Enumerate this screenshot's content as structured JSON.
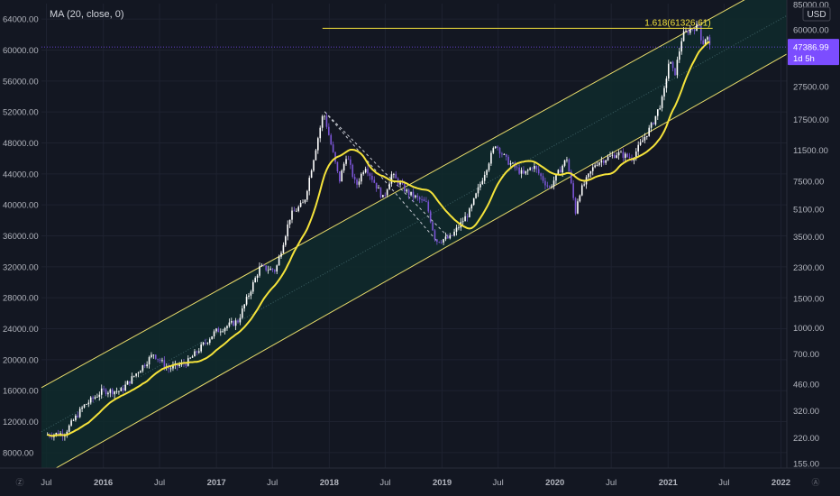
{
  "chart_data": {
    "type": "candlestick",
    "indicator_label": "MA (20, close, 0)",
    "currency_label": "USD",
    "left_axis": {
      "scale": "linear",
      "range": [
        6000,
        66000
      ],
      "ticks": [
        "8000.00",
        "12000.00",
        "16000.00",
        "20000.00",
        "24000.00",
        "28000.00",
        "32000.00",
        "36000.00",
        "40000.00",
        "44000.00",
        "48000.00",
        "52000.00",
        "56000.00",
        "60000.00",
        "64000.00"
      ],
      "tick_values": [
        8000,
        12000,
        16000,
        20000,
        24000,
        28000,
        32000,
        36000,
        40000,
        44000,
        48000,
        52000,
        56000,
        60000,
        64000
      ]
    },
    "right_axis": {
      "scale": "log",
      "ticks": [
        "85000.00",
        "60000.00",
        "27500.00",
        "17500.00",
        "11500.00",
        "7500.00",
        "5100.00",
        "3500.00",
        "2300.00",
        "1500.00",
        "1000.00",
        "700.00",
        "460.00",
        "320.00",
        "220.00",
        "155.00"
      ],
      "tick_values": [
        85000,
        60000,
        27500,
        17500,
        11500,
        7500,
        5100,
        3500,
        2300,
        1500,
        1000,
        700,
        460,
        320,
        220,
        155
      ]
    },
    "x_axis": {
      "range": [
        "2015-06-15",
        "2022-01-20"
      ],
      "ticks": [
        {
          "label": "Jul",
          "date": "2015-07-01",
          "bold": false
        },
        {
          "label": "2016",
          "date": "2016-01-01",
          "bold": true
        },
        {
          "label": "Jul",
          "date": "2016-07-01",
          "bold": false
        },
        {
          "label": "2017",
          "date": "2017-01-01",
          "bold": true
        },
        {
          "label": "Jul",
          "date": "2017-07-01",
          "bold": false
        },
        {
          "label": "2018",
          "date": "2018-01-01",
          "bold": true
        },
        {
          "label": "Jul",
          "date": "2018-07-01",
          "bold": false
        },
        {
          "label": "2019",
          "date": "2019-01-01",
          "bold": true
        },
        {
          "label": "Jul",
          "date": "2019-07-01",
          "bold": false
        },
        {
          "label": "2020",
          "date": "2020-01-01",
          "bold": true
        },
        {
          "label": "Jul",
          "date": "2020-07-01",
          "bold": false
        },
        {
          "label": "2021",
          "date": "2021-01-01",
          "bold": true
        },
        {
          "label": "Jul",
          "date": "2021-07-01",
          "bold": false
        },
        {
          "label": "2022",
          "date": "2022-01-01",
          "bold": true
        }
      ]
    },
    "price_key_points": [
      [
        "2015-07-01",
        230
      ],
      [
        "2015-09-01",
        235
      ],
      [
        "2015-11-01",
        340
      ],
      [
        "2016-01-01",
        420
      ],
      [
        "2016-03-01",
        420
      ],
      [
        "2016-06-15",
        700
      ],
      [
        "2016-08-01",
        570
      ],
      [
        "2016-10-01",
        620
      ],
      [
        "2017-01-01",
        950
      ],
      [
        "2017-03-15",
        1100
      ],
      [
        "2017-05-25",
        2300
      ],
      [
        "2017-07-15",
        2200
      ],
      [
        "2017-09-01",
        4700
      ],
      [
        "2017-10-15",
        5600
      ],
      [
        "2017-12-17",
        19500
      ],
      [
        "2018-02-06",
        7500
      ],
      [
        "2018-03-01",
        10800
      ],
      [
        "2018-04-01",
        7000
      ],
      [
        "2018-05-01",
        9300
      ],
      [
        "2018-06-28",
        5900
      ],
      [
        "2018-07-25",
        8200
      ],
      [
        "2018-09-15",
        6400
      ],
      [
        "2018-11-15",
        5500
      ],
      [
        "2018-12-15",
        3300
      ],
      [
        "2019-02-01",
        3450
      ],
      [
        "2019-04-05",
        5000
      ],
      [
        "2019-06-26",
        12500
      ],
      [
        "2019-08-01",
        10000
      ],
      [
        "2019-09-25",
        8200
      ],
      [
        "2019-10-26",
        9300
      ],
      [
        "2019-12-17",
        6800
      ],
      [
        "2020-02-12",
        10300
      ],
      [
        "2020-03-12",
        4800
      ],
      [
        "2020-03-20",
        6200
      ],
      [
        "2020-05-15",
        9600
      ],
      [
        "2020-07-25",
        11000
      ],
      [
        "2020-09-10",
        10300
      ],
      [
        "2020-11-15",
        16500
      ],
      [
        "2020-12-20",
        24000
      ],
      [
        "2021-01-08",
        40000
      ],
      [
        "2021-01-25",
        32000
      ],
      [
        "2021-02-20",
        56000
      ],
      [
        "2021-03-13",
        60000
      ],
      [
        "2021-04-14",
        63500
      ],
      [
        "2021-04-25",
        49000
      ],
      [
        "2021-05-10",
        56000
      ],
      [
        "2021-05-17",
        47400
      ]
    ],
    "series": [
      {
        "name": "MA (20, close, 0)",
        "type": "line",
        "color": "#f5e33b"
      }
    ],
    "fibonacci_level": {
      "label": "1.618(61326.61)",
      "value": 61326.61,
      "from": "2017-12-10",
      "to": "2021-05-25"
    },
    "channel": {
      "upper": [
        [
          "2015-06-15",
          440
        ],
        [
          "2022-01-20",
          125000
        ]
      ],
      "lower": [
        [
          "2015-06-15",
          130
        ],
        [
          "2022-01-20",
          43000
        ]
      ],
      "mid": [
        [
          "2015-06-15",
          240
        ],
        [
          "2022-01-20",
          73000
        ]
      ]
    },
    "dashed_lines": [
      [
        [
          "2017-12-17",
          19500
        ],
        [
          "2018-12-15",
          3300
        ]
      ],
      [
        [
          "2017-12-17",
          19500
        ],
        [
          "2019-01-20",
          3500
        ]
      ]
    ],
    "last_price": {
      "label": "47386.99",
      "value": 47386.99,
      "countdown": "1d 5h"
    },
    "colors": {
      "background": "#131722",
      "candle_up": "#ffffff",
      "candle_down": "#7b55d6",
      "moving_average": "#f5e33b",
      "channel_line": "#e8dc6a",
      "channel_fill": "#0f2a2b",
      "fib_line": "#f5e33b",
      "last_price_badge": "#7c4dff",
      "axis_text": "#b2b5be"
    }
  }
}
